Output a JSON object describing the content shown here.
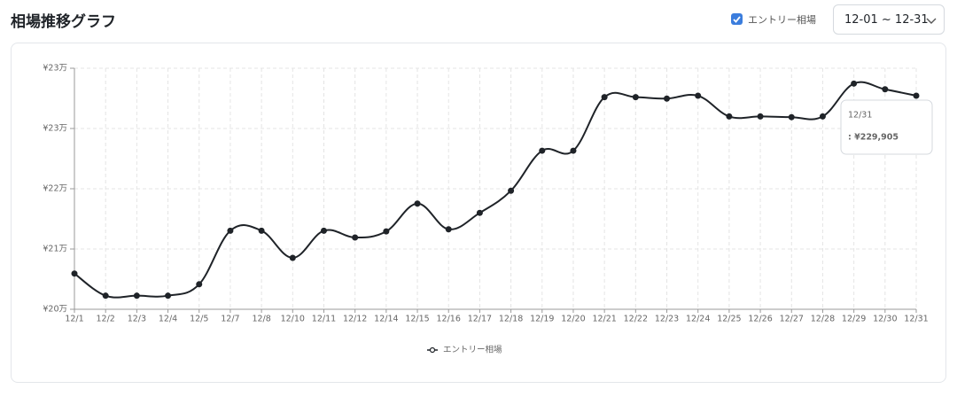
{
  "header": {
    "title": "相場推移グラフ",
    "checkbox_label": "エントリー相場",
    "date_range": "12-01 ~ 12-31"
  },
  "chart_data": {
    "type": "line",
    "categories": [
      "12/1",
      "12/2",
      "12/3",
      "12/4",
      "12/5",
      "12/7",
      "12/8",
      "12/10",
      "12/11",
      "12/12",
      "12/14",
      "12/15",
      "12/16",
      "12/17",
      "12/18",
      "12/19",
      "12/20",
      "12/21",
      "12/22",
      "12/23",
      "12/24",
      "12/25",
      "12/26",
      "12/27",
      "12/28",
      "12/29",
      "12/30",
      "12/31"
    ],
    "series": [
      {
        "name": "エントリー相場",
        "color": "#1f2328",
        "values": [
          205000,
          201900,
          201900,
          201900,
          203500,
          211000,
          211000,
          207200,
          211000,
          210050,
          210900,
          214800,
          211200,
          213500,
          216600,
          222200,
          222200,
          229700,
          229700,
          229500,
          229900,
          227000,
          227000,
          226900,
          227000,
          231600,
          230800,
          229905
        ]
      }
    ],
    "ylim": [
      200000,
      233750
    ],
    "yticks": [
      {
        "value": 200000,
        "label": "¥20万"
      },
      {
        "value": 208437.5,
        "label": "¥21万"
      },
      {
        "value": 216875,
        "label": "¥22万"
      },
      {
        "value": 225312.5,
        "label": "¥23万"
      },
      {
        "value": 233750,
        "label": "¥23万"
      }
    ],
    "grid": true,
    "legend": "bottom",
    "tooltip": {
      "title": "12/31",
      "text": ": ¥229,905"
    }
  }
}
